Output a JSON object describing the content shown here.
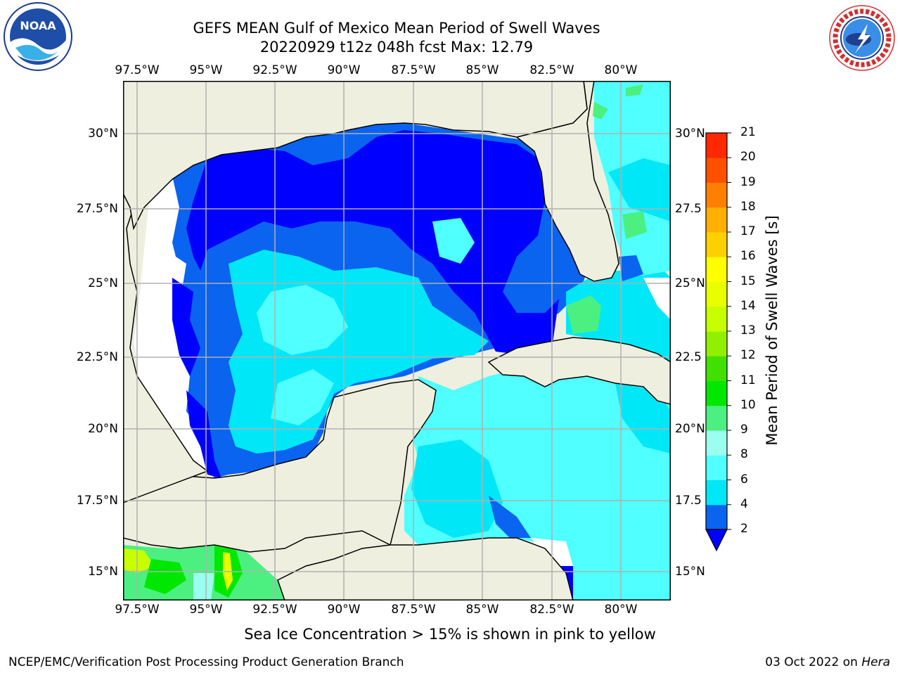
{
  "title": {
    "line1": "GEFS MEAN Gulf of Mexico Mean Period of Swell Waves",
    "line2": "20220929 t12z 048h fcst   Max: 12.79"
  },
  "map": {
    "lon_ticks": [
      "97.5°W",
      "95°W",
      "92.5°W",
      "90°W",
      "87.5°W",
      "85°W",
      "82.5°W",
      "80°W"
    ],
    "lat_ticks_left": [
      "30°N",
      "27.5°N",
      "25°N",
      "22.5°N",
      "20°N",
      "17.5°N",
      "15°N"
    ],
    "lat_ticks_right": [
      "30°N",
      "27.5",
      "25°N",
      "22.5",
      "20°N",
      "17.5",
      "15°N"
    ],
    "land_color": "#efefdf",
    "grid_color": "#b0b0b0"
  },
  "colorbar": {
    "ticks": [
      "2",
      "4",
      "6",
      "8",
      "9",
      "10",
      "11",
      "12",
      "13",
      "14",
      "15",
      "16",
      "17",
      "18",
      "19",
      "20",
      "21"
    ],
    "label": "Mean Period of Swell Waves [s]",
    "colors": [
      "#0a64f0",
      "#00e8f8",
      "#50ffff",
      "#9bfff0",
      "#4cf080",
      "#00e800",
      "#40e000",
      "#90f000",
      "#c8ff00",
      "#e8ff00",
      "#ffff00",
      "#ffd000",
      "#ffb000",
      "#ff8000",
      "#ff5000",
      "#ff2800"
    ],
    "under_color": "#0000ff"
  },
  "note": "Sea Ice Concentration > 15% is shown in pink to yellow",
  "footer": {
    "left": "NCEP/EMC/Verification Post Processing Product Generation Branch",
    "right_date": "03 Oct 2022 on ",
    "right_host": "Hera"
  },
  "logos": {
    "noaa": "NOAA",
    "nws": "NATIONAL WEATHER SERVICE"
  }
}
